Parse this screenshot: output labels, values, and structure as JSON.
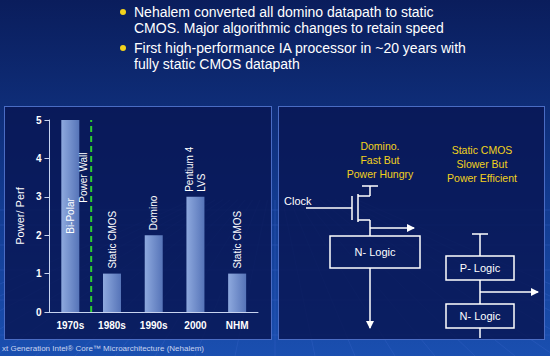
{
  "bullets": [
    "Nehalem converted all domino datapath to static CMOS. Major algorithmic changes to retain speed",
    "First high-performance IA processor in ~20 years with fully static CMOS datapath"
  ],
  "chart_data": {
    "type": "bar",
    "ylabel": "Power/ Perf",
    "categories": [
      "1970s",
      "1980s",
      "1990s",
      "2000",
      "NHM"
    ],
    "values": [
      5,
      1,
      2,
      3,
      1
    ],
    "bar_labels": [
      [
        "Bi-Polar"
      ],
      [
        "Static CMOS"
      ],
      [
        "Domino"
      ],
      [
        "Pentium 4",
        "LVS"
      ],
      [
        "Static CMOS"
      ]
    ],
    "color": "#8ea9de",
    "ylim": [
      0,
      5
    ],
    "yticks": [
      0,
      1,
      2,
      3,
      4,
      5
    ],
    "grid": false,
    "annotations": [
      {
        "text": "Power Wall",
        "between": [
          "1970s",
          "1980s"
        ],
        "color": "#2fd02f",
        "line_style": "dashed"
      }
    ]
  },
  "diagram": {
    "domino": {
      "caption": [
        "Domino.",
        "Fast But",
        "Power Hungry"
      ],
      "clock": "Clock",
      "blocks": [
        "N- Logic"
      ]
    },
    "static": {
      "caption": [
        "Static CMOS",
        "Slower But",
        "Power Efficient"
      ],
      "blocks": [
        "P- Logic",
        "N- Logic"
      ]
    }
  },
  "footer": "xt Generation Intel® Core™ Microarchitecture (Nehalem)"
}
